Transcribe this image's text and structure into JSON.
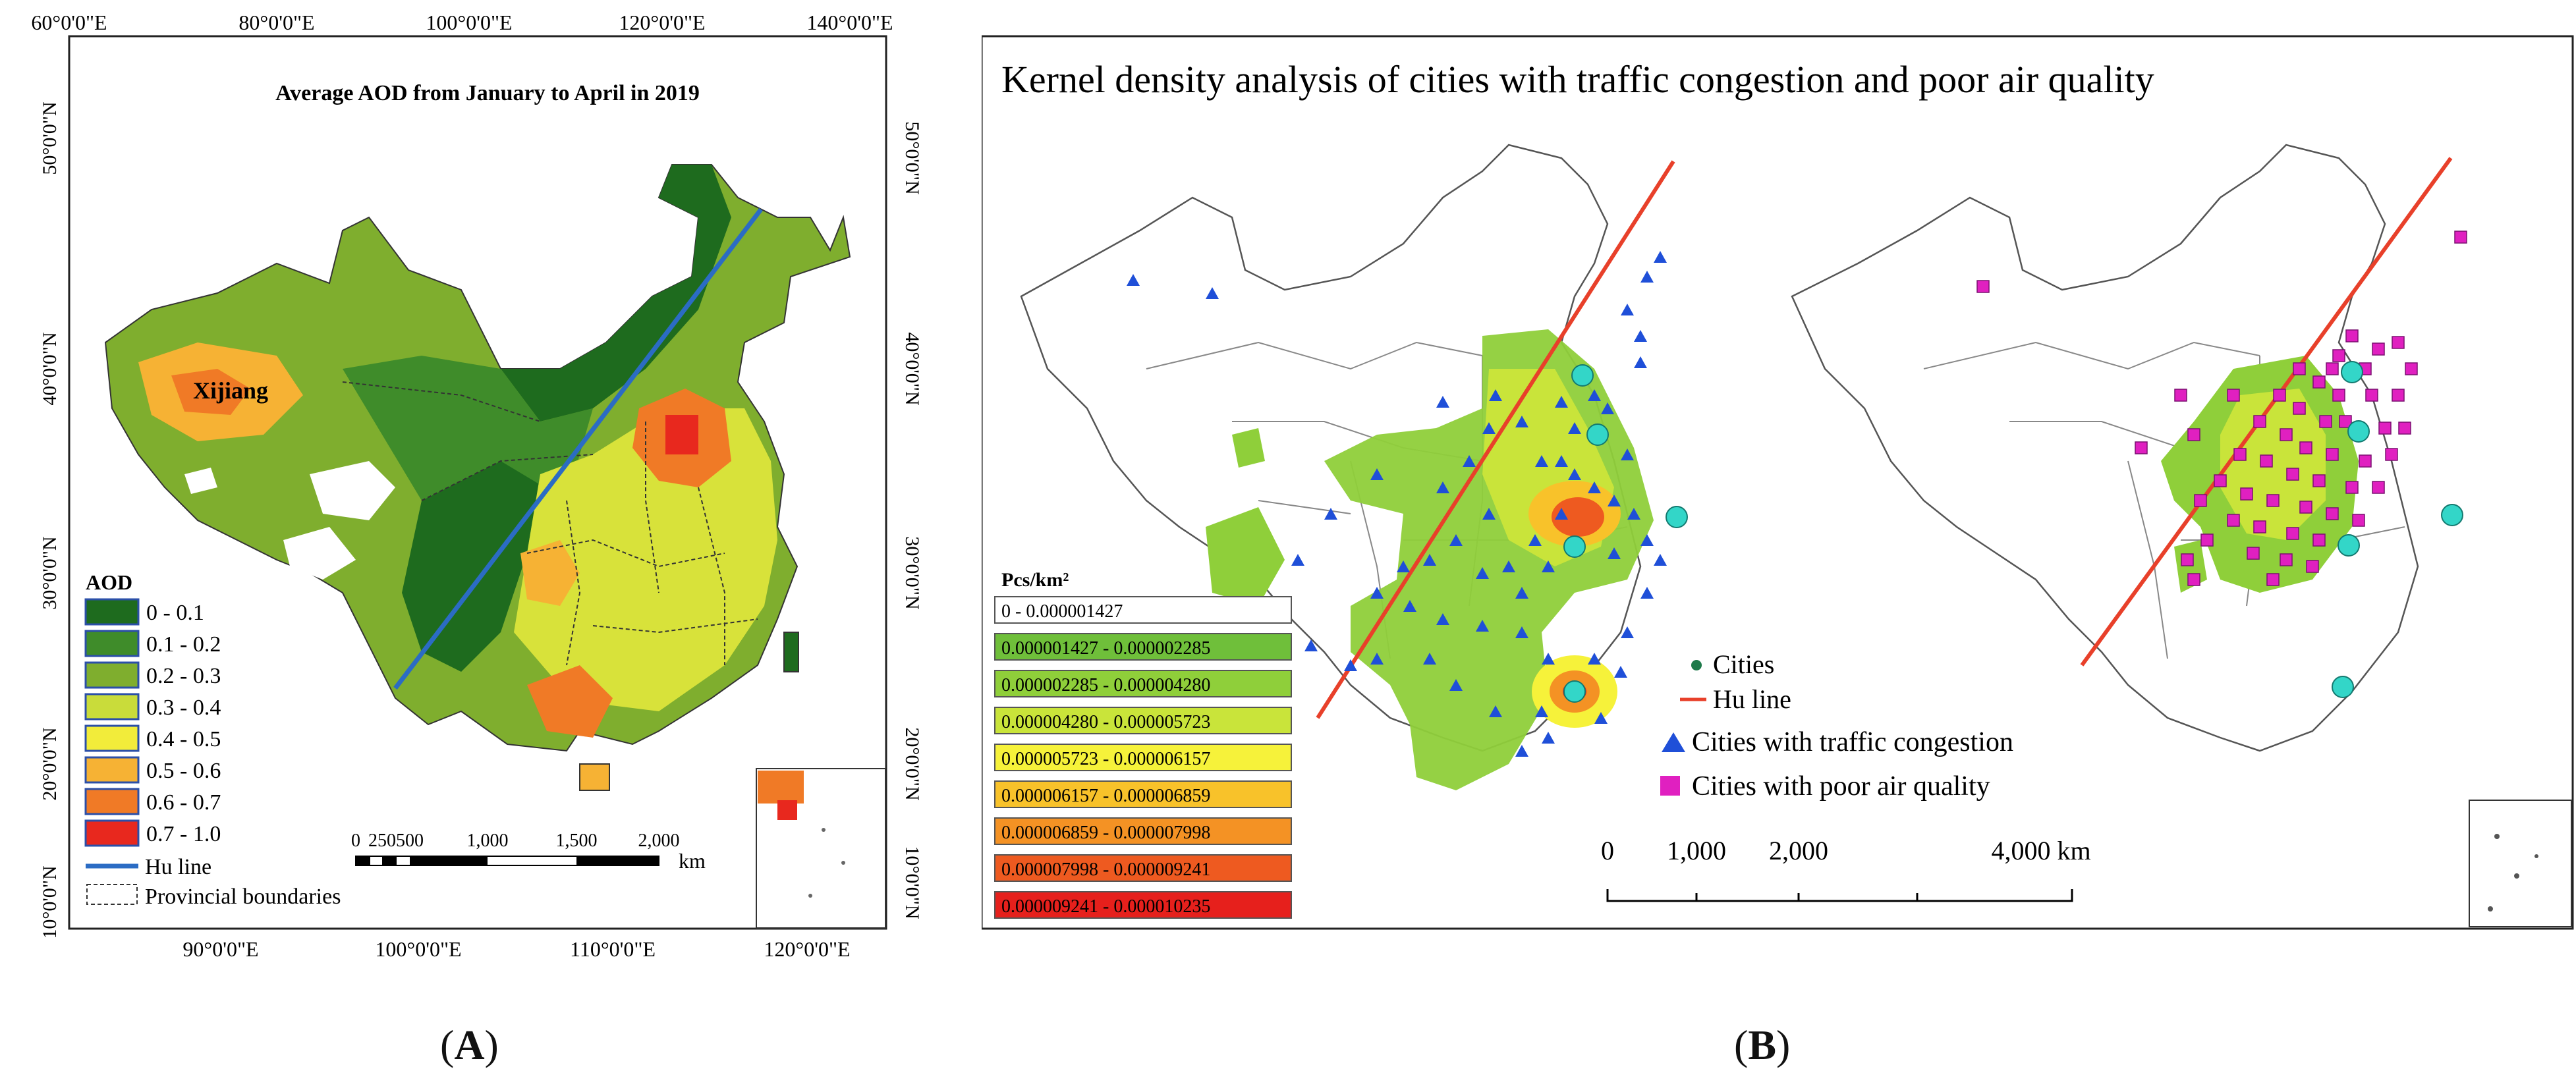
{
  "panel_a": {
    "title": "Average AOD from January to April in 2019",
    "place_label": "Xijiang",
    "top_ticks": [
      "60°0'0\"E",
      "80°0'0\"E",
      "100°0'0\"E",
      "120°0'0\"E",
      "140°0'0\"E"
    ],
    "bottom_ticks": [
      "90°0'0\"E",
      "100°0'0\"E",
      "110°0'0\"E",
      "120°0'0\"E"
    ],
    "left_ticks": [
      "50°0'0\"N",
      "40°0'0\"N",
      "30°0'0\"N",
      "20°0'0\"N",
      "10°0'0\"N"
    ],
    "right_ticks": [
      "50°0'0\"N",
      "40°0'0\"N",
      "30°0'0\"N",
      "20°0'0\"N",
      "10°0'0\"N"
    ],
    "legend": {
      "title": "AOD",
      "classes": [
        {
          "label": "0 - 0.1",
          "color": "#1e6b1e"
        },
        {
          "label": "0.1 - 0.2",
          "color": "#3f8c2a"
        },
        {
          "label": "0.2 - 0.3",
          "color": "#7fae2e"
        },
        {
          "label": "0.3 - 0.4",
          "color": "#c9dc3a"
        },
        {
          "label": "0.4 - 0.5",
          "color": "#f2ec3a"
        },
        {
          "label": "0.5 - 0.6",
          "color": "#f6b234"
        },
        {
          "label": "0.6 - 0.7",
          "color": "#f07a26"
        },
        {
          "label": "0.7 - 1.0",
          "color": "#e8281e"
        }
      ],
      "hu_line": "Hu line",
      "provincial": "Provincial boundaries",
      "hu_color": "#2b6cc4"
    },
    "scale": {
      "ticks": [
        "0",
        "250",
        "500",
        "1,000",
        "1,500",
        "2,000"
      ],
      "unit": "km"
    },
    "label": "A"
  },
  "panel_b": {
    "title": "Kernel density analysis of cities  with  traffic congestion and poor air quality",
    "legend_title": "Pcs/km²",
    "density_classes": [
      {
        "label": "0 - 0.000001427",
        "color": "#ffffff"
      },
      {
        "label": "0.000001427 - 0.000002285",
        "color": "#6fbf3a"
      },
      {
        "label": "0.000002285 - 0.000004280",
        "color": "#8fcf3a"
      },
      {
        "label": "0.000004280 - 0.000005723",
        "color": "#c9e43a"
      },
      {
        "label": "0.000005723 - 0.000006157",
        "color": "#f6f23a"
      },
      {
        "label": "0.000006157 - 0.000006859",
        "color": "#f8c22a"
      },
      {
        "label": "0.000006859 - 0.000007998",
        "color": "#f49224"
      },
      {
        "label": "0.000007998 - 0.000009241",
        "color": "#ee5a20"
      },
      {
        "label": "0.000009241 - 0.000010235",
        "color": "#e6201c"
      }
    ],
    "symbols": {
      "cities": "Cities",
      "hu_line": "Hu line",
      "traffic": "Cities with traffic congestion",
      "air": "Cities with poor air quality"
    },
    "colors": {
      "hu": "#e8402a",
      "traffic": "#1f4fd8",
      "air": "#e020c0",
      "city": "#33d6c8"
    },
    "scale": {
      "ticks": [
        "0",
        "1,000",
        "2,000",
        "4,000 km"
      ]
    },
    "label": "B"
  }
}
